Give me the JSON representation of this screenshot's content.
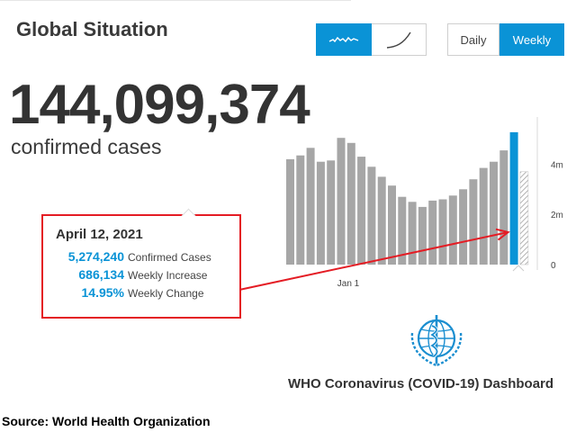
{
  "header": {
    "title": "Global Situation"
  },
  "summary": {
    "total": "144,099,374",
    "label": "confirmed cases"
  },
  "controls": {
    "chart_types": [
      {
        "icon": "wave-line-icon",
        "active": true
      },
      {
        "icon": "growth-curve-icon",
        "active": false
      }
    ],
    "periods": [
      {
        "label": "Daily",
        "active": false
      },
      {
        "label": "Weekly",
        "active": true
      }
    ]
  },
  "tooltip": {
    "date": "April 12, 2021",
    "rows": [
      {
        "value": "5,274,240",
        "label": "Confirmed Cases"
      },
      {
        "value": "686,134",
        "label": "Weekly Increase"
      },
      {
        "value": "14.95%",
        "label": "Weekly Change"
      }
    ]
  },
  "chart_data": {
    "type": "bar",
    "title": "",
    "xlabel": "",
    "ylabel": "",
    "ylim": [
      0,
      5200000
    ],
    "yticks": [
      {
        "value": 0,
        "label": "0"
      },
      {
        "value": 2000000,
        "label": "2m"
      },
      {
        "value": 4000000,
        "label": "4m"
      }
    ],
    "xticks": [
      {
        "index": 5,
        "label": "Jan 1"
      }
    ],
    "grid": false,
    "legend": "none",
    "series": [
      {
        "values": [
          4200000,
          4350000,
          4650000,
          4100000,
          4150000,
          5050000,
          4850000,
          4300000,
          3900000,
          3500000,
          3150000,
          2700000,
          2500000,
          2300000,
          2550000,
          2600000,
          2750000,
          3000000,
          3400000,
          3850000,
          4100000,
          4550000,
          5274240,
          3700000
        ],
        "colors": [
          "#a6a6a6",
          "#a6a6a6",
          "#a6a6a6",
          "#a6a6a6",
          "#a6a6a6",
          "#a6a6a6",
          "#a6a6a6",
          "#a6a6a6",
          "#a6a6a6",
          "#a6a6a6",
          "#a6a6a6",
          "#a6a6a6",
          "#a6a6a6",
          "#a6a6a6",
          "#a6a6a6",
          "#a6a6a6",
          "#a6a6a6",
          "#a6a6a6",
          "#a6a6a6",
          "#a6a6a6",
          "#a6a6a6",
          "#a6a6a6",
          "#0a93d6",
          "hatched"
        ]
      }
    ],
    "highlight_index": 22,
    "annotation": {
      "type": "arrow",
      "color": "#e41c24",
      "from": "tooltip",
      "to_index": 22
    }
  },
  "branding": {
    "caption": "WHO Coronavirus (COVID-19) Dashboard",
    "logo": "who-emblem"
  },
  "footer": {
    "source": "Source: World Health Organization"
  },
  "colors": {
    "accent": "#0a93d6",
    "bar": "#a6a6a6",
    "annotation": "#e41c24"
  }
}
